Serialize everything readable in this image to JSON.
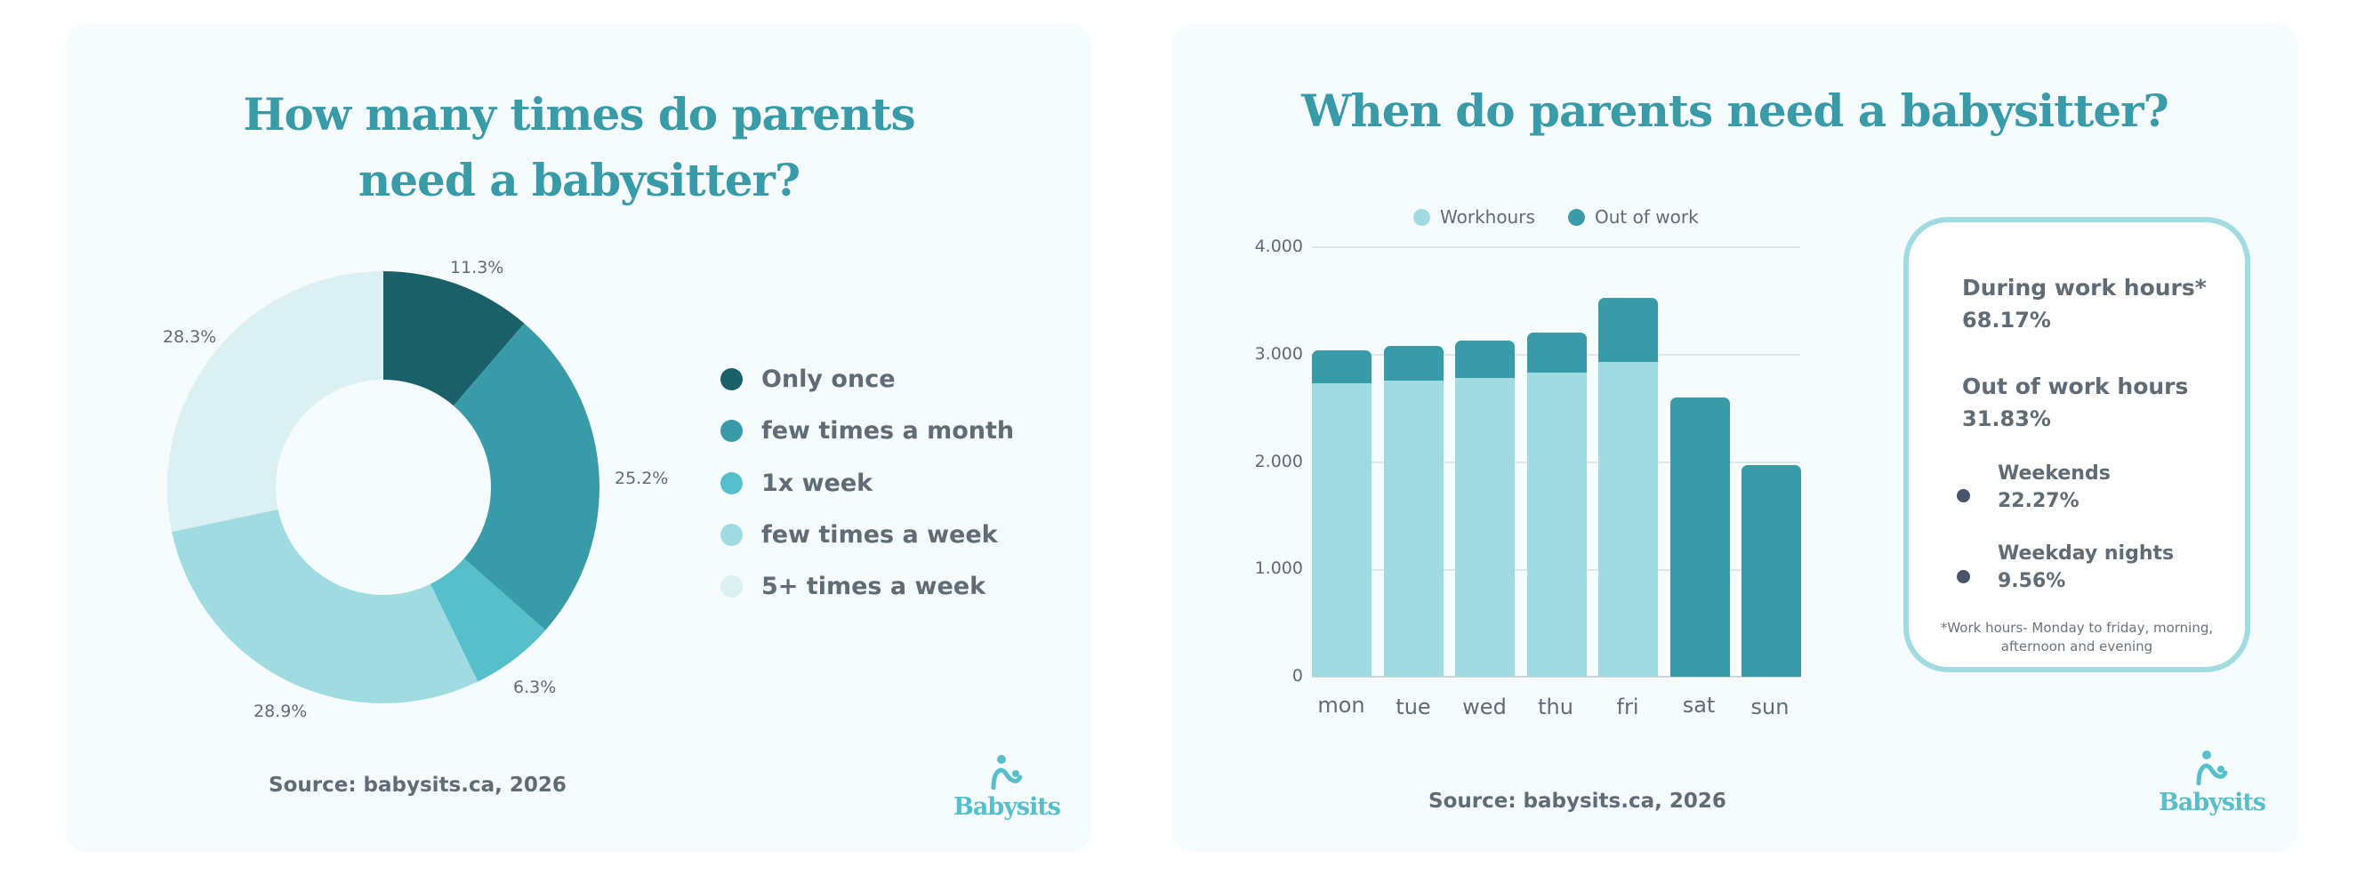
{
  "left_card": {
    "title_line1": "How many times do parents",
    "title_line2": "need a babysitter?",
    "source": "Source: babysits.ca, 2026",
    "logo_text": "Babysits"
  },
  "right_card": {
    "title": "When do parents need a babysitter?",
    "source": "Source: babysits.ca, 2026",
    "logo_text": "Babysits",
    "info_box": {
      "during_label": "During work hours*",
      "during_value": "68.17%",
      "out_label": "Out of work hours",
      "out_value": "31.83%",
      "weekends_label": "Weekends",
      "weekends_value": "22.27%",
      "weekday_nights_label": "Weekday nights",
      "weekday_nights_value": "9.56%",
      "footnote_line1": "*Work hours- Monday to friday, morning,",
      "footnote_line2": "afternoon and evening"
    }
  },
  "colors": {
    "only_once": "#1b5f68",
    "few_month": "#3a9ba8",
    "one_week": "#56bfca",
    "few_week": "#9fdbe0",
    "five_plus": "#dbf0f2",
    "workhours": "#9fdbe0",
    "out_of_work": "#3a9ba8",
    "title": "#3a9ba8",
    "text": "#5f6b75",
    "card_bg": "#f6fcfe"
  },
  "chart_data": [
    {
      "type": "pie",
      "subtype": "donut",
      "title": "How many times do parents need a babysitter?",
      "categories": [
        "Only once",
        "few times a month",
        "1x week",
        "few times a week",
        "5+ times a week"
      ],
      "values": [
        11.3,
        25.2,
        6.3,
        28.9,
        28.3
      ],
      "labels": [
        "11.3%",
        "25.2%",
        "6.3%",
        "28.9%",
        "28.3%"
      ],
      "colors": [
        "#1b5f68",
        "#3a9ba8",
        "#56bfca",
        "#9fdbe0",
        "#dbf0f2"
      ],
      "legend_position": "right",
      "source": "Source: babysits.ca, 2026"
    },
    {
      "type": "bar",
      "subtype": "stacked",
      "title": "When do parents need a babysitter?",
      "categories": [
        "mon",
        "tue",
        "wed",
        "thu",
        "fri",
        "sat",
        "sun"
      ],
      "series": [
        {
          "name": "Workhours",
          "color": "#9fdbe0",
          "values": [
            2750,
            2775,
            2800,
            2850,
            2950,
            0,
            0
          ]
        },
        {
          "name": "Out of work",
          "color": "#3a9ba8",
          "values": [
            305,
            325,
            350,
            375,
            600,
            2615,
            1980
          ]
        }
      ],
      "totals": [
        3055,
        3100,
        3150,
        3225,
        3550,
        2615,
        1980
      ],
      "xlabel": "",
      "ylabel": "",
      "ylim": [
        0,
        4000
      ],
      "yticks": [
        "0",
        "1.000",
        "2.000",
        "3.000",
        "4.000"
      ],
      "grid": true,
      "legend_position": "top",
      "source": "Source: babysits.ca, 2026"
    }
  ]
}
